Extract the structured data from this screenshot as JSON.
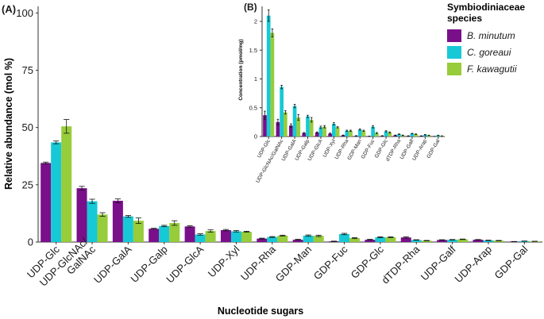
{
  "colors": {
    "B. minutum": "#7a0f8a",
    "C. goreaui": "#17c9d6",
    "F. kawagutii": "#97cc3a",
    "axis": "#333333",
    "errorbar": "#111111"
  },
  "chart_data": [
    {
      "panel": "main",
      "panel_label": "(A)",
      "type": "bar",
      "xlabel": "Nucleotide sugars",
      "ylabel": "Relative abundance (mol %)",
      "ylim": [
        0,
        100
      ],
      "yticks": [
        0,
        25,
        50,
        75,
        100
      ],
      "categories": [
        "UDP-Glc",
        "UDP-GlcNAc/\nGalNAc",
        "UDP-GalA",
        "UDP-Galp",
        "UDP-GlcA",
        "UDP-Xyl",
        "UDP-Rha",
        "GDP-Man",
        "GDP-Fuc",
        "GDP-Glc",
        "dTDP-Rha",
        "UDP-Galf",
        "UDP-Arap",
        "GDP-Gal"
      ],
      "series": [
        {
          "name": "B. minutum",
          "values": [
            34.5,
            23.5,
            18.0,
            5.8,
            6.8,
            5.2,
            1.5,
            1.0,
            0.3,
            1.0,
            2.0,
            0.9,
            1.0,
            0.2
          ],
          "errors": [
            0.4,
            0.8,
            0.8,
            0.2,
            0.3,
            0.3,
            0.2,
            0.2,
            0.1,
            0.2,
            0.3,
            0.1,
            0.1,
            0.05
          ]
        },
        {
          "name": "C. goreaui",
          "values": [
            43.5,
            17.8,
            11.2,
            7.0,
            3.3,
            4.7,
            2.2,
            2.8,
            3.5,
            2.1,
            0.9,
            1.0,
            0.7,
            0.4
          ],
          "errors": [
            0.6,
            0.9,
            0.4,
            0.3,
            0.3,
            0.3,
            0.2,
            0.3,
            0.3,
            0.2,
            0.1,
            0.1,
            0.1,
            0.05
          ]
        },
        {
          "name": "F. kawagutii",
          "values": [
            50.5,
            12.0,
            9.3,
            8.3,
            4.8,
            4.5,
            2.8,
            2.7,
            1.7,
            2.1,
            0.6,
            1.2,
            0.6,
            0.3
          ],
          "errors": [
            3.0,
            0.8,
            1.2,
            1.0,
            0.5,
            0.2,
            0.2,
            0.3,
            0.2,
            0.2,
            0.1,
            0.1,
            0.1,
            0.05
          ]
        }
      ]
    },
    {
      "panel": "inset",
      "panel_label": "(B)",
      "type": "bar",
      "xlabel": "",
      "ylabel": "Concentration (pmol/mg)",
      "ylim": [
        0,
        2.25
      ],
      "yticks": [
        0,
        0.5,
        1,
        1.5,
        2
      ],
      "ytick_labels": [
        "0",
        "0.5",
        "1",
        "1.5",
        "2"
      ],
      "categories": [
        "UDP-Glc",
        "UDP-GlcNAc/GalNAc",
        "UDP-GalA",
        "UDP-Galp",
        "UDP-GlcA",
        "UDP-Xyl",
        "UDP-Rha",
        "GDP-Man",
        "GDP-Fuc",
        "GDP-Glc",
        "dTDP-Rha",
        "UDP-Galf",
        "UDP-Arap",
        "GDP-Gal"
      ],
      "series": [
        {
          "name": "B. minutum",
          "values": [
            0.37,
            0.25,
            0.19,
            0.06,
            0.07,
            0.05,
            0.02,
            0.01,
            0.005,
            0.01,
            0.02,
            0.01,
            0.01,
            0.002
          ],
          "errors": [
            0.07,
            0.05,
            0.03,
            0.01,
            0.01,
            0.01,
            0.005,
            0.005,
            0.002,
            0.005,
            0.005,
            0.003,
            0.003,
            0.001
          ]
        },
        {
          "name": "C. goreaui",
          "values": [
            2.1,
            0.86,
            0.53,
            0.35,
            0.16,
            0.22,
            0.1,
            0.12,
            0.17,
            0.09,
            0.04,
            0.05,
            0.03,
            0.02
          ],
          "errors": [
            0.1,
            0.03,
            0.03,
            0.02,
            0.02,
            0.02,
            0.01,
            0.01,
            0.02,
            0.01,
            0.005,
            0.005,
            0.005,
            0.003
          ]
        },
        {
          "name": "F. kawagutii",
          "values": [
            1.8,
            0.42,
            0.33,
            0.29,
            0.17,
            0.16,
            0.1,
            0.1,
            0.06,
            0.07,
            0.02,
            0.04,
            0.02,
            0.01
          ],
          "errors": [
            0.07,
            0.03,
            0.05,
            0.04,
            0.02,
            0.01,
            0.01,
            0.01,
            0.01,
            0.01,
            0.005,
            0.005,
            0.003,
            0.002
          ]
        }
      ]
    }
  ],
  "legend": {
    "title": "Symbiodiniaceae\nspecies",
    "items": [
      "B. minutum",
      "C. goreaui",
      "F. kawagutii"
    ]
  }
}
